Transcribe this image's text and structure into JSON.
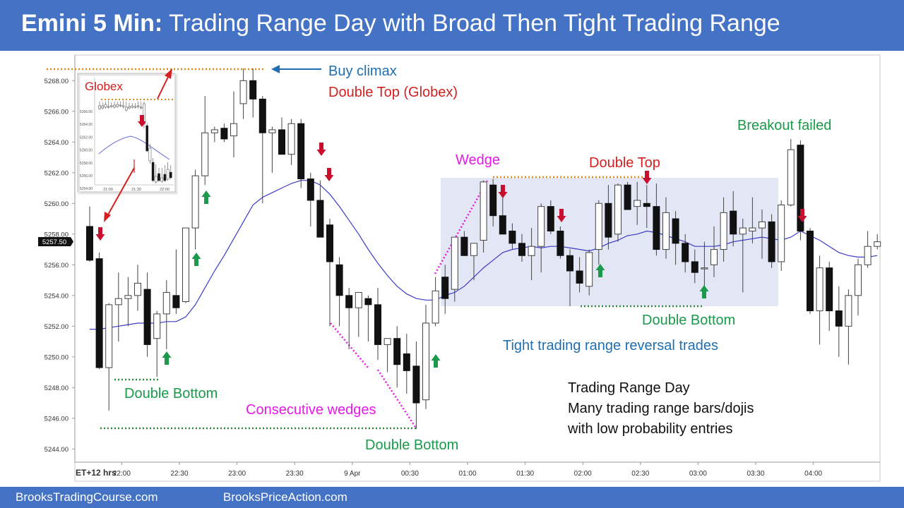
{
  "title": {
    "bold": "Emini 5 Min:",
    "rest": " Trading Range Day with Broad Then Tight Trading Range"
  },
  "footer": {
    "left": "BrooksTradingCourse.com",
    "right": "BrooksPriceAction.com"
  },
  "colors": {
    "bar": "#4472c4",
    "bull_arrow": "#1a9a4a",
    "bear_arrow": "#c8102e",
    "ema": "#3b3bc8",
    "magenta": "#e619e6",
    "green_text": "#1a9a4a",
    "blue_text": "#1f6fb2",
    "red_text": "#d42020",
    "orange_dots": "#e08a1e",
    "range_box": "#e3e7f5"
  },
  "chart_data": {
    "type": "candlestick",
    "x_axis_label": "ET+12 hrs",
    "x_ticks": [
      {
        "i": 4,
        "label": "22:00"
      },
      {
        "i": 10,
        "label": "22:30"
      },
      {
        "i": 16,
        "label": "23:00"
      },
      {
        "i": 22,
        "label": "23:30"
      },
      {
        "i": 28,
        "label": "9 Apr"
      },
      {
        "i": 34,
        "label": "00:30"
      },
      {
        "i": 40,
        "label": "01:00"
      },
      {
        "i": 46,
        "label": "01:30"
      },
      {
        "i": 52,
        "label": "02:00"
      },
      {
        "i": 58,
        "label": "02:30"
      },
      {
        "i": 64,
        "label": "03:00"
      },
      {
        "i": 70,
        "label": "03:30"
      },
      {
        "i": 76,
        "label": "04:00"
      }
    ],
    "y_ticks": [
      "5268.00",
      "5266.00",
      "5264.00",
      "5262.00",
      "5260.00",
      "5258.00",
      "5256.00",
      "5254.00",
      "5252.00",
      "5250.00",
      "5248.00",
      "5246.00",
      "5244.00"
    ],
    "ylim": [
      5243.8,
      5270.2
    ],
    "last_price": "5257.50",
    "bars": [
      [
        5258.5,
        5259.8,
        5256.2,
        5256.3
      ],
      [
        5256.4,
        5256.8,
        5249.2,
        5249.3
      ],
      [
        5249.3,
        5253.5,
        5246.5,
        5253.4
      ],
      [
        5253.4,
        5255.5,
        5251.0,
        5253.8
      ],
      [
        5253.8,
        5255.2,
        5252.0,
        5254.0
      ],
      [
        5254.0,
        5256.0,
        5253.0,
        5254.8
      ],
      [
        5254.4,
        5255.5,
        5250.0,
        5250.8
      ],
      [
        5251.2,
        5253.0,
        5248.7,
        5252.8
      ],
      [
        5252.8,
        5255.0,
        5250.5,
        5254.2
      ],
      [
        5254.0,
        5257.0,
        5252.8,
        5253.2
      ],
      [
        5253.6,
        5258.0,
        5253.5,
        5258.4
      ],
      [
        5258.4,
        5262.2,
        5257.0,
        5261.8
      ],
      [
        5261.8,
        5267.0,
        5261.2,
        5264.6
      ],
      [
        5264.6,
        5265.0,
        5264.0,
        5264.8
      ],
      [
        5264.9,
        5265.2,
        5264.0,
        5264.2
      ],
      [
        5264.4,
        5267.3,
        5263.0,
        5265.2
      ],
      [
        5266.5,
        5268.8,
        5265.5,
        5268.0
      ],
      [
        5268.0,
        5268.8,
        5265.6,
        5266.8
      ],
      [
        5266.8,
        5267.0,
        5260.0,
        5264.6
      ],
      [
        5264.6,
        5265.0,
        5262.0,
        5264.8
      ],
      [
        5264.8,
        5265.6,
        5263.4,
        5263.2
      ],
      [
        5263.2,
        5265.5,
        5262.5,
        5265.2
      ],
      [
        5265.2,
        5265.5,
        5261.0,
        5261.6
      ],
      [
        5261.6,
        5262.0,
        5258.5,
        5260.2
      ],
      [
        5260.2,
        5261.5,
        5258.0,
        5257.8
      ],
      [
        5258.6,
        5259.0,
        5252.0,
        5256.2
      ],
      [
        5256.0,
        5256.5,
        5252.0,
        5254.0
      ],
      [
        5254.0,
        5254.5,
        5250.5,
        5253.2
      ],
      [
        5253.2,
        5254.2,
        5251.3,
        5254.2
      ],
      [
        5253.8,
        5254.0,
        5251.0,
        5253.4
      ],
      [
        5253.4,
        5254.5,
        5249.8,
        5250.8
      ],
      [
        5250.8,
        5251.0,
        5249.0,
        5251.2
      ],
      [
        5251.2,
        5252.0,
        5248.0,
        5249.5
      ],
      [
        5250.2,
        5251.5,
        5247.6,
        5249.1
      ],
      [
        5249.4,
        5251.0,
        5245.3,
        5247.0
      ],
      [
        5247.2,
        5253.4,
        5246.6,
        5252.2
      ],
      [
        5252.2,
        5255.2,
        5252.0,
        5254.3
      ],
      [
        5255.2,
        5256.0,
        5252.8,
        5253.8
      ],
      [
        5254.4,
        5257.5,
        5253.6,
        5257.8
      ],
      [
        5257.8,
        5258.2,
        5256.6,
        5256.6
      ],
      [
        5256.6,
        5257.2,
        5255.0,
        5257.4
      ],
      [
        5257.6,
        5261.5,
        5256.8,
        5261.4
      ],
      [
        5261.2,
        5261.6,
        5258.5,
        5259.2
      ],
      [
        5259.2,
        5260.4,
        5258.0,
        5258.0
      ],
      [
        5258.2,
        5258.7,
        5257.0,
        5257.4
      ],
      [
        5257.4,
        5258.0,
        5256.2,
        5256.6
      ],
      [
        5256.6,
        5258.4,
        5255.0,
        5257.2
      ],
      [
        5257.2,
        5260.0,
        5255.5,
        5259.8
      ],
      [
        5259.8,
        5260.2,
        5258.0,
        5258.2
      ],
      [
        5258.2,
        5258.5,
        5256.4,
        5256.6
      ],
      [
        5256.6,
        5257.0,
        5253.3,
        5255.6
      ],
      [
        5255.6,
        5256.5,
        5254.2,
        5254.8
      ],
      [
        5254.6,
        5257.0,
        5254.0,
        5256.8
      ],
      [
        5257.0,
        5260.2,
        5256.0,
        5260.0
      ],
      [
        5260.0,
        5261.2,
        5257.0,
        5257.8
      ],
      [
        5258.0,
        5261.3,
        5257.5,
        5261.2
      ],
      [
        5261.2,
        5261.4,
        5259.8,
        5259.6
      ],
      [
        5259.8,
        5261.4,
        5258.6,
        5260.2
      ],
      [
        5260.0,
        5261.2,
        5258.4,
        5259.8
      ],
      [
        5259.8,
        5261.3,
        5256.6,
        5257.0
      ],
      [
        5257.0,
        5260.4,
        5256.4,
        5259.4
      ],
      [
        5259.0,
        5259.5,
        5256.0,
        5257.4
      ],
      [
        5257.4,
        5258.0,
        5255.5,
        5256.2
      ],
      [
        5256.2,
        5257.0,
        5254.8,
        5255.5
      ],
      [
        5255.8,
        5257.5,
        5254.6,
        5255.8
      ],
      [
        5256.0,
        5258.5,
        5255.2,
        5257.0
      ],
      [
        5257.0,
        5260.4,
        5256.2,
        5259.4
      ],
      [
        5259.5,
        5260.8,
        5257.2,
        5258.0
      ],
      [
        5258.0,
        5259.0,
        5254.2,
        5258.4
      ],
      [
        5258.2,
        5260.4,
        5257.4,
        5258.4
      ],
      [
        5258.4,
        5259.6,
        5256.4,
        5258.8
      ],
      [
        5258.8,
        5259.3,
        5255.8,
        5256.2
      ],
      [
        5256.2,
        5260.2,
        5255.6,
        5259.9
      ],
      [
        5259.9,
        5264.2,
        5259.8,
        5263.5
      ],
      [
        5263.8,
        5264.1,
        5257.6,
        5258.2
      ],
      [
        5258.2,
        5258.4,
        5252.8,
        5253.0
      ],
      [
        5253.0,
        5256.6,
        5250.8,
        5255.8
      ],
      [
        5255.8,
        5256.2,
        5251.7,
        5253.0
      ],
      [
        5253.0,
        5254.6,
        5250.0,
        5252.0
      ],
      [
        5252.0,
        5254.4,
        5249.5,
        5254.0
      ],
      [
        5254.0,
        5256.4,
        5252.7,
        5256.0
      ],
      [
        5256.0,
        5258.2,
        5255.8,
        5257.2
      ],
      [
        5257.2,
        5258.0,
        5257.0,
        5257.5
      ]
    ],
    "ema": [
      5251.8,
      5251.8,
      5251.9,
      5252.0,
      5252.1,
      5252.2,
      5252.2,
      5252.2,
      5252.3,
      5252.3,
      5252.6,
      5253.4,
      5254.5,
      5255.6,
      5256.6,
      5257.7,
      5258.8,
      5259.9,
      5260.4,
      5260.7,
      5261.0,
      5261.3,
      5261.5,
      5261.5,
      5261.2,
      5260.6,
      5259.8,
      5258.9,
      5258.0,
      5257.0,
      5256.1,
      5255.3,
      5254.6,
      5254.1,
      5253.8,
      5253.7,
      5253.7,
      5254.0,
      5254.2,
      5254.6,
      5255.2,
      5255.8,
      5256.3,
      5256.8,
      5257.0,
      5257.1,
      5257.2,
      5257.1,
      5257.2,
      5257.2,
      5257.1,
      5257.0,
      5256.9,
      5257.1,
      5257.4,
      5257.6,
      5257.9,
      5258.0,
      5258.2,
      5258.1,
      5257.9,
      5257.7,
      5257.5,
      5257.2,
      5257.2,
      5257.2,
      5257.3,
      5257.5,
      5257.6,
      5257.7,
      5257.8,
      5257.7,
      5257.6,
      5257.8,
      5258.2,
      5257.9,
      5257.6,
      5257.2,
      5256.8,
      5256.6,
      5256.5,
      5256.5,
      5256.6
    ]
  },
  "annotations": {
    "buy_climax": "Buy climax",
    "double_top_globex": "Double Top (Globex)",
    "globex": "Globex",
    "wedge": "Wedge",
    "double_top": "Double Top",
    "breakout_failed": "Breakout failed",
    "double_bottom_1": "Double Bottom",
    "consecutive_wedges": "Consecutive wedges",
    "double_bottom_2": "Double Bottom",
    "double_bottom_3": "Double Bottom",
    "tight_range": "Tight trading range reversal trades",
    "summary_1": "Trading Range Day",
    "summary_2": "Many trading range bars/dojis",
    "summary_3": "with low probability entries"
  },
  "inset": {
    "y_ticks": [
      "5266.00",
      "5264.00",
      "5262.00",
      "5260.00",
      "5258.00",
      "5256.00",
      "5254.00"
    ],
    "x_ticks": [
      "21:00",
      "21:30",
      "22:00"
    ]
  }
}
